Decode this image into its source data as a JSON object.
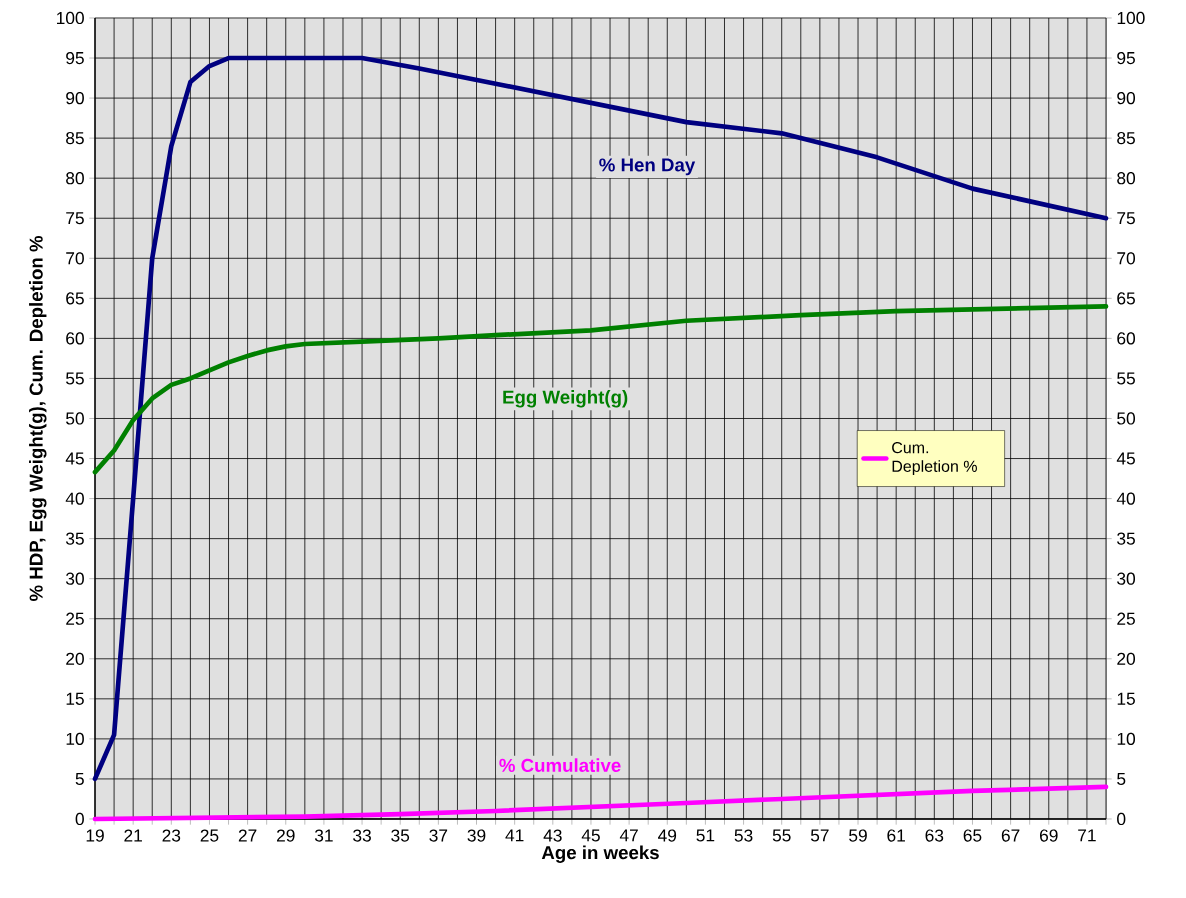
{
  "chart_data": {
    "type": "line",
    "xlabel": "Age in weeks",
    "ylabel": "% HDP, Egg Weight(g), Cum. Depletion %",
    "xlim": [
      19,
      72
    ],
    "xticks": [
      19,
      {
        "value": 20,
        "label": null
      },
      21,
      {
        "value": 22,
        "label": null
      },
      23,
      {
        "value": 24,
        "label": null
      },
      25,
      {
        "value": 26,
        "label": null
      },
      27,
      {
        "value": 28,
        "label": null
      },
      29,
      {
        "value": 30,
        "label": null
      },
      31,
      {
        "value": 32,
        "label": null
      },
      33,
      {
        "value": 34,
        "label": null
      },
      35,
      {
        "value": 36,
        "label": null
      },
      37,
      {
        "value": 38,
        "label": null
      },
      39,
      {
        "value": 40,
        "label": null
      },
      41,
      {
        "value": 42,
        "label": null
      },
      43,
      {
        "value": 44,
        "label": null
      },
      45,
      {
        "value": 46,
        "label": null
      },
      47,
      {
        "value": 48,
        "label": null
      },
      49,
      {
        "value": 50,
        "label": null
      },
      51,
      {
        "value": 52,
        "label": null
      },
      53,
      {
        "value": 54,
        "label": null
      },
      55,
      {
        "value": 56,
        "label": null
      },
      57,
      {
        "value": 58,
        "label": null
      },
      59,
      {
        "value": 60,
        "label": null
      },
      61,
      {
        "value": 62,
        "label": null
      },
      63,
      {
        "value": 64,
        "label": null
      },
      65,
      {
        "value": 66,
        "label": null
      },
      67,
      {
        "value": 68,
        "label": null
      },
      69,
      {
        "value": 70,
        "label": null
      },
      71,
      {
        "value": 72,
        "label": null
      }
    ],
    "ylim": [
      0,
      100
    ],
    "yticks": [
      0,
      5,
      10,
      15,
      20,
      25,
      30,
      35,
      40,
      45,
      50,
      55,
      60,
      65,
      70,
      75,
      80,
      85,
      90,
      95,
      100
    ],
    "y2lim": [
      0,
      100
    ],
    "y2ticks": [
      0,
      5,
      10,
      15,
      20,
      25,
      30,
      35,
      40,
      45,
      50,
      55,
      60,
      65,
      70,
      75,
      80,
      85,
      90,
      95,
      100
    ],
    "grid": true,
    "legend": "right",
    "series": [
      {
        "color": "#000080",
        "x": [
          19,
          20,
          21,
          22,
          23,
          24,
          25,
          26,
          33,
          36,
          40,
          45,
          50,
          55,
          60,
          65,
          72
        ],
        "values": [
          5,
          10.5,
          40,
          70,
          84,
          92,
          94,
          95,
          95,
          93.7,
          91.8,
          89.4,
          87,
          85.6,
          82.6,
          78.7,
          75
        ]
      },
      {
        "color": "#008000",
        "x": [
          19,
          20,
          21,
          22,
          23,
          24,
          25,
          26,
          27,
          28,
          29,
          30,
          33,
          37,
          40,
          45,
          50,
          56,
          61,
          72
        ],
        "values": [
          43.3,
          46,
          49.8,
          52.5,
          54.2,
          55,
          56,
          57,
          57.8,
          58.5,
          59,
          59.3,
          59.6,
          60,
          60.4,
          61,
          62.2,
          62.9,
          63.4,
          64
        ]
      },
      {
        "name": "Cum. Depletion %",
        "color": "#ff00ff",
        "x": [
          19,
          30,
          35,
          40,
          45,
          50,
          55,
          60,
          65,
          72
        ],
        "values": [
          0,
          0.3,
          0.6,
          1,
          1.5,
          2,
          2.5,
          3,
          3.5,
          4
        ]
      }
    ],
    "annotations": [
      "% Hen Day",
      "Egg Weight(g)",
      "% Cumulative"
    ]
  }
}
